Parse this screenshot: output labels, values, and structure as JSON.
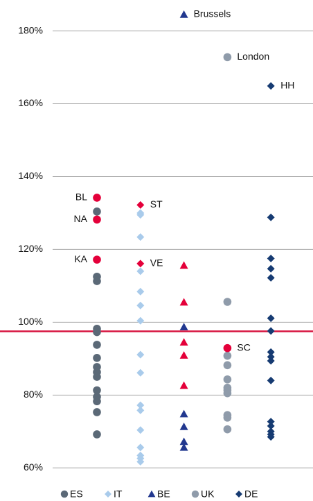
{
  "chart_data": {
    "type": "strip",
    "ylim": [
      57,
      188.5
    ],
    "yticks": [
      {
        "value": 60,
        "label": "60%"
      },
      {
        "value": 80,
        "label": "80%"
      },
      {
        "value": 100,
        "label": "100%"
      },
      {
        "value": 120,
        "label": "120%"
      },
      {
        "value": 140,
        "label": "140%"
      },
      {
        "value": 160,
        "label": "160%"
      },
      {
        "value": 180,
        "label": "180%"
      }
    ],
    "grid": true,
    "legend": "bottom",
    "reference_line": {
      "value": 97.5,
      "color": "#d7143f"
    },
    "series": [
      {
        "name": "ES",
        "color": "#5b6977",
        "marker": "circle",
        "values": [
          130.4,
          112.5,
          111.3,
          98.2,
          97.3,
          93.8,
          90.2,
          87.7,
          86.3,
          85,
          81.3,
          79.5,
          78.3,
          75.3,
          69.2
        ]
      },
      {
        "name": "IT",
        "color": "#a9cbeb",
        "marker": "diamond",
        "values": [
          130,
          129.5,
          123.4,
          114,
          108.4,
          104.6,
          100.4,
          91.1,
          86.1,
          77.2,
          75.8,
          70.4,
          65.6,
          63.4,
          62.6,
          61.7
        ]
      },
      {
        "name": "BE",
        "color": "#22388f",
        "marker": "triangle",
        "values": [
          98.7,
          74.8,
          71.3,
          67.2,
          65.6
        ]
      },
      {
        "name": "UK",
        "color": "#8f9baa",
        "marker": "circle",
        "values": [
          105.6,
          90.8,
          88.2,
          84.3,
          82,
          81.3,
          80.5,
          74.5,
          73.8,
          70.6
        ]
      },
      {
        "name": "DE",
        "color": "#163b72",
        "marker": "diamond",
        "values": [
          128.8,
          117.5,
          114.7,
          112.2,
          101.1,
          97.6,
          91.8,
          90.5,
          89.4,
          84,
          72.7,
          71.5,
          70,
          69.2,
          68.5
        ]
      }
    ],
    "highlights": [
      {
        "series": 0,
        "value": 134.2,
        "label": "BL",
        "color": "#e4003a"
      },
      {
        "series": 0,
        "value": 128.2,
        "label": "NA",
        "color": "#e4003a"
      },
      {
        "series": 0,
        "value": 117.2,
        "label": "KA",
        "color": "#e4003a"
      },
      {
        "series": 1,
        "value": 132.2,
        "label": "ST",
        "color": "#e4003a"
      },
      {
        "series": 1,
        "value": 116.1,
        "label": "VE",
        "color": "#e4003a"
      },
      {
        "series": 2,
        "value": 115.6,
        "color": "#e4003a"
      },
      {
        "series": 2,
        "value": 105.5,
        "color": "#e4003a"
      },
      {
        "series": 2,
        "value": 94.5,
        "color": "#e4003a"
      },
      {
        "series": 2,
        "value": 90.9,
        "color": "#e4003a"
      },
      {
        "series": 2,
        "value": 82.6,
        "color": "#e4003a"
      },
      {
        "series": 2,
        "value": 184.5,
        "label": "Brussels",
        "color": "#22388f"
      },
      {
        "series": 3,
        "value": 172.8,
        "label": "London",
        "color": "#8f9baa"
      },
      {
        "series": 3,
        "value": 92.9,
        "label": "SC",
        "color": "#e4003a"
      },
      {
        "series": 4,
        "value": 164.9,
        "label": "HH",
        "color": "#163b72"
      }
    ]
  }
}
